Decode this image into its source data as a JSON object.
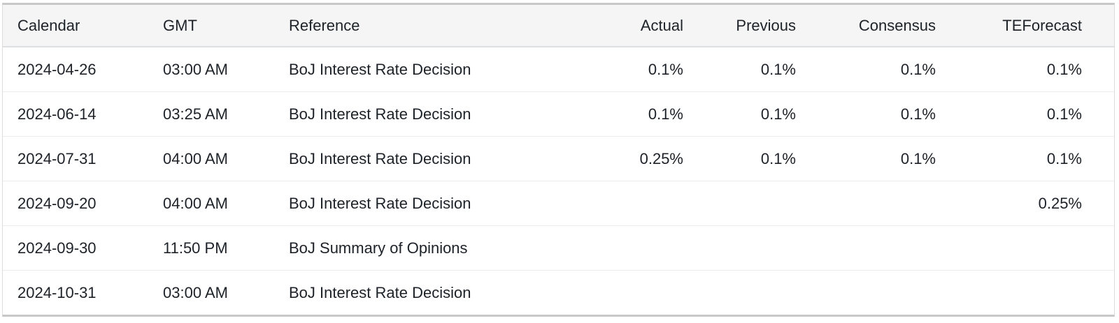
{
  "table": {
    "columns": [
      {
        "key": "calendar",
        "label": "Calendar",
        "align": "left"
      },
      {
        "key": "gmt",
        "label": "GMT",
        "align": "left"
      },
      {
        "key": "reference",
        "label": "Reference",
        "align": "left"
      },
      {
        "key": "actual",
        "label": "Actual",
        "align": "right"
      },
      {
        "key": "previous",
        "label": "Previous",
        "align": "right"
      },
      {
        "key": "consensus",
        "label": "Consensus",
        "align": "right"
      },
      {
        "key": "teforecast",
        "label": "TEForecast",
        "align": "right"
      }
    ],
    "rows": [
      {
        "calendar": "2024-04-26",
        "gmt": "03:00 AM",
        "reference": "BoJ Interest Rate Decision",
        "actual": "0.1%",
        "previous": "0.1%",
        "consensus": "0.1%",
        "teforecast": "0.1%"
      },
      {
        "calendar": "2024-06-14",
        "gmt": "03:25 AM",
        "reference": "BoJ Interest Rate Decision",
        "actual": "0.1%",
        "previous": "0.1%",
        "consensus": "0.1%",
        "teforecast": "0.1%"
      },
      {
        "calendar": "2024-07-31",
        "gmt": "04:00 AM",
        "reference": "BoJ Interest Rate Decision",
        "actual": "0.25%",
        "previous": "0.1%",
        "consensus": "0.1%",
        "teforecast": "0.1%"
      },
      {
        "calendar": "2024-09-20",
        "gmt": "04:00 AM",
        "reference": "BoJ Interest Rate Decision",
        "actual": "",
        "previous": "",
        "consensus": "",
        "teforecast": "0.25%"
      },
      {
        "calendar": "2024-09-30",
        "gmt": "11:50 PM",
        "reference": "BoJ Summary of Opinions",
        "actual": "",
        "previous": "",
        "consensus": "",
        "teforecast": ""
      },
      {
        "calendar": "2024-10-31",
        "gmt": "03:00 AM",
        "reference": "BoJ Interest Rate Decision",
        "actual": "",
        "previous": "",
        "consensus": "",
        "teforecast": ""
      }
    ]
  },
  "colors": {
    "header_bg": "#f5f5f5",
    "outer_border": "#c8c8c8",
    "side_border": "#dcdcdc",
    "header_divider": "#dde0e3",
    "row_divider": "#ececec",
    "text": "#1d2228",
    "row_bg": "#ffffff"
  }
}
